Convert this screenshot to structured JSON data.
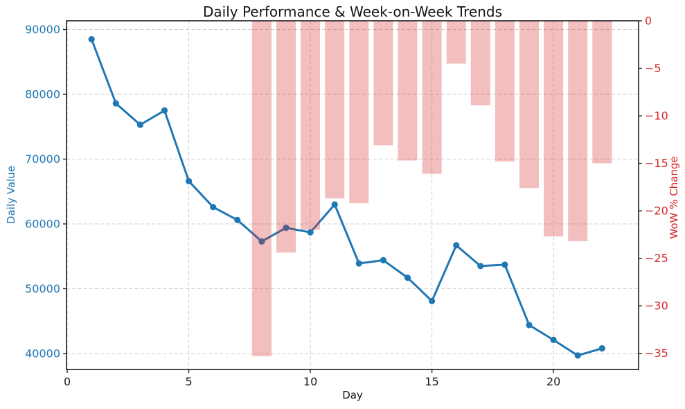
{
  "chart_data": {
    "type": "line",
    "title": "Daily Performance & Week-on-Week Trends",
    "xlabel": "Day",
    "x": [
      1,
      2,
      3,
      4,
      5,
      6,
      7,
      8,
      9,
      10,
      11,
      12,
      13,
      14,
      15,
      16,
      17,
      18,
      19,
      20,
      21,
      22
    ],
    "series": [
      {
        "name": "Daily Value",
        "type": "line",
        "axis": "left",
        "color": "#1f77b4",
        "x": [
          1,
          2,
          3,
          4,
          5,
          6,
          7,
          8,
          9,
          10,
          11,
          12,
          13,
          14,
          15,
          16,
          17,
          18,
          19,
          20,
          21,
          22
        ],
        "values": [
          88500,
          78600,
          75300,
          77500,
          66600,
          62600,
          60600,
          57300,
          59400,
          58700,
          63000,
          53900,
          54400,
          51700,
          48100,
          56700,
          53500,
          53700,
          44400,
          42100,
          39700,
          40800
        ]
      },
      {
        "name": "WoW % Change",
        "type": "bar",
        "axis": "right",
        "color": "#d62728",
        "opacity": 0.3,
        "x": [
          8,
          9,
          10,
          11,
          12,
          13,
          14,
          15,
          16,
          17,
          18,
          19,
          20,
          21,
          22
        ],
        "values": [
          -35.3,
          -24.4,
          -22.0,
          -18.7,
          -19.2,
          -13.1,
          -14.7,
          -16.1,
          -4.5,
          -8.9,
          -14.8,
          -17.6,
          -22.7,
          -23.2,
          -15.0
        ]
      }
    ],
    "axes": {
      "x": {
        "label": "Day",
        "ticks": [
          0,
          5,
          10,
          15,
          20
        ],
        "range": [
          -0.03,
          23.5
        ]
      },
      "left": {
        "label": "Daily Value",
        "color": "#1f77b4",
        "ticks": [
          40000,
          50000,
          60000,
          70000,
          80000,
          90000
        ],
        "range": [
          37540,
          91340
        ],
        "grid": true
      },
      "right": {
        "label": "WoW % Change",
        "color": "#d62728",
        "ticks": [
          0,
          -5,
          -10,
          -15,
          -20,
          -25,
          -30,
          -35
        ],
        "range": [
          -36.7,
          0
        ]
      }
    },
    "style": {
      "grid_color": "#cccccc",
      "spine_color": "#1a1a1a",
      "tick_color": "#1a1a1a",
      "background": "#ffffff"
    },
    "legend": "none"
  }
}
